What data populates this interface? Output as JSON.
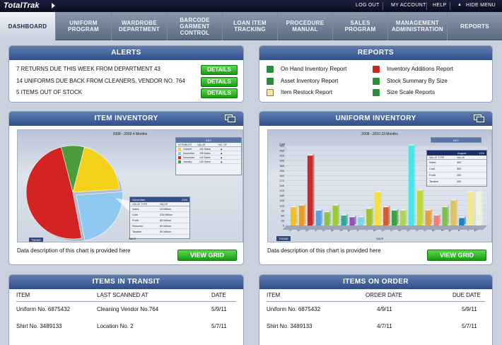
{
  "topbar": {
    "brand": "TotalTrak",
    "log_out": "LOG OUT",
    "my_account": "MY ACCOUNT",
    "help": "HELP",
    "hide_menu": "HIDE MENU"
  },
  "nav": [
    {
      "label": "DASHBOARD"
    },
    {
      "label": "UNIFORM\nPROGRAM"
    },
    {
      "label": "WARDROBE\nDEPARTMENT"
    },
    {
      "label": "BARCODE\nGARMENT\nCONTROL"
    },
    {
      "label": "LOAN ITEM\nTRACKING"
    },
    {
      "label": "PROCEDURE\nMANUAL"
    },
    {
      "label": "SALES\nPROGRAM"
    },
    {
      "label": "MANAGEMENT\nADMINISTRATION"
    },
    {
      "label": "REPORTS"
    }
  ],
  "alerts": {
    "title": "ALERTS",
    "button": "DETAILS",
    "items": [
      {
        "text": "7 RETURNS DUE THIS WEEK FROM DEPARTMENT 43"
      },
      {
        "text": "14 UNIFORMS DUE BACK FROM CLEANERS, VENDOR NO. 764"
      },
      {
        "text": "5 ITEMS OUT OF STOCK"
      }
    ]
  },
  "reports": {
    "title": "REPORTS",
    "left": [
      {
        "label": "On Hand Inventory Report",
        "icon": "excel-icon"
      },
      {
        "label": "Asset Inventory Report",
        "icon": "excel-icon"
      },
      {
        "label": "Item Restock Report",
        "icon": "document-icon"
      }
    ],
    "right": [
      {
        "label": "Inventory Additions Report",
        "icon": "pdf-icon"
      },
      {
        "label": "Stock Summary By Size",
        "icon": "excel-icon"
      },
      {
        "label": "Size Scale Reports",
        "icon": "excel-icon"
      }
    ]
  },
  "item_inventory": {
    "title": "ITEM INVENTORY",
    "chart_title": "2008 - 2009 4 Months",
    "description": "Data description of this chart is provided here",
    "button": "VIEW GRID",
    "theme": "THEME",
    "save": "SAVE",
    "key": {
      "header": "KEY",
      "cols": [
        "ATTRIBUTE",
        "VALUE",
        "NO. OF"
      ],
      "rows": [
        [
          "October",
          "131 Sales"
        ],
        [
          "November",
          "155 Sales"
        ],
        [
          "December",
          "131 Sales"
        ],
        [
          "January",
          "131 Sales"
        ]
      ]
    },
    "detail": {
      "month": "November",
      "pct": "23%",
      "cols": [
        "VALUE TYPE",
        "VALUE"
      ],
      "rows": [
        [
          "Sales",
          "23 Million"
        ],
        [
          "Cost",
          "210 Million"
        ],
        [
          "Profit",
          "60 Million"
        ],
        [
          "Reinvest",
          "50 Million"
        ],
        [
          "Taxable",
          "50 Million"
        ]
      ]
    }
  },
  "uniform_inventory": {
    "title": "UNIFORM INVENTORY",
    "chart_title": "2008 - 2010 23 Months",
    "ylabel": "Cost",
    "description": "Data description of this chart is provided here",
    "button": "VIEW GRID",
    "theme": "THEME",
    "save": "SAVE",
    "key": {
      "header": "KEY"
    },
    "detail": {
      "month": "August",
      "pct": "11%",
      "cols": [
        "VALUE TYPE",
        "VALUE"
      ],
      "rows": [
        [
          "Sales",
          "450"
        ],
        [
          "Cost",
          "300"
        ],
        [
          "Profit",
          "150"
        ],
        [
          "Taxable",
          "150"
        ]
      ]
    }
  },
  "transit": {
    "title": "ITEMS IN TRANSIT",
    "cols": [
      "ITEM",
      "LAST SCANNED AT",
      "DATE"
    ],
    "rows": [
      [
        "Uniform No. 6875432",
        "Cleaning Vendor No.764",
        "5/9/11"
      ],
      [
        "Shirt No. 3489133",
        "Location No. 2",
        "5/7/11"
      ]
    ]
  },
  "onorder": {
    "title": "ITEMS ON ORDER",
    "cols": [
      "ITEM",
      "ORDER DATE",
      "DUE DATE"
    ],
    "rows": [
      [
        "Uniform No. 6875432",
        "4/9/11",
        "5/9/11"
      ],
      [
        "Shirt No. 3489133",
        "4/7/11",
        "5/7/11"
      ]
    ]
  },
  "chart_data": [
    {
      "type": "pie",
      "title": "2008 - 2009 4 Months",
      "categories": [
        "October",
        "November",
        "December",
        "January"
      ],
      "values": [
        20,
        23,
        49,
        8
      ],
      "colors": [
        "#f4d21c",
        "#8fc8f0",
        "#d42323",
        "#4d9b3a"
      ]
    },
    {
      "type": "bar",
      "title": "2008 - 2010 23 Months",
      "ylabel": "Cost",
      "ylim": [
        0,
        480
      ],
      "yticks": [
        0,
        30,
        60,
        90,
        120,
        150,
        180,
        210,
        240,
        270,
        300,
        330,
        360,
        390,
        420,
        450,
        480
      ],
      "categories": [
        "Oct",
        "Nov",
        "Dec",
        "Jan",
        "Feb",
        "Mar",
        "Apr",
        "May",
        "Jun",
        "Jul",
        "Aug",
        "Sep",
        "Oct",
        "Nov",
        "Dec",
        "Jan",
        "Feb",
        "Mar",
        "Apr",
        "May",
        "Jun",
        "Jul",
        "Aug"
      ],
      "values": [
        110,
        120,
        420,
        90,
        80,
        120,
        60,
        50,
        50,
        100,
        200,
        110,
        90,
        90,
        480,
        210,
        90,
        60,
        110,
        150,
        45,
        200,
        200
      ],
      "colors": [
        "#f0c020",
        "#f09a20",
        "#c82a2a",
        "#5aa0e0",
        "#8bc34a",
        "#9acd32",
        "#2fa89a",
        "#8c5ab4",
        "#7fd4e0",
        "#a0c030",
        "#f0e040",
        "#d06030",
        "#40a040",
        "#b0d060",
        "#50e0e8",
        "#c0d840",
        "#e0a040",
        "#f08080",
        "#80c050",
        "#e0c060",
        "#2080c0",
        "#f0e890",
        "#f0f0e0"
      ]
    }
  ]
}
